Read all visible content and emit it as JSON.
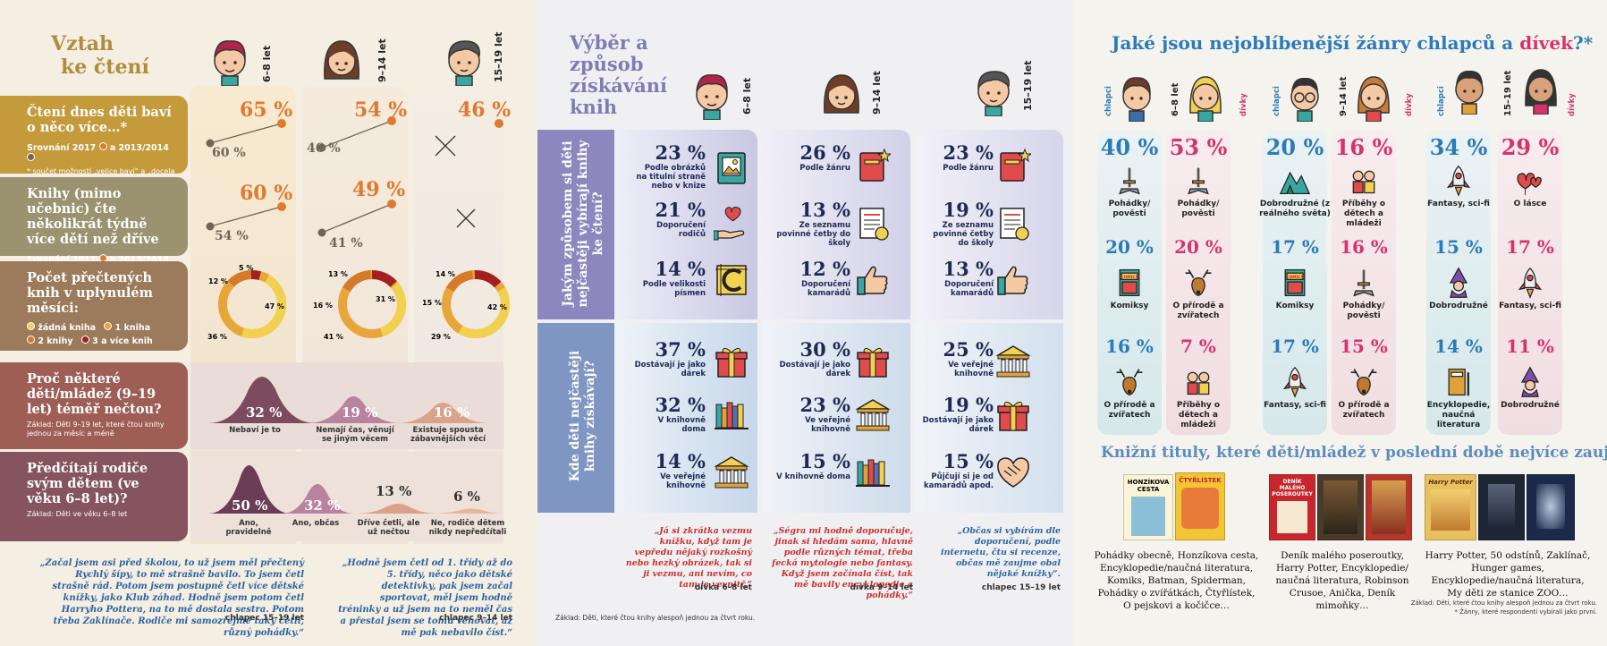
{
  "p1": {
    "title1": "Vztah",
    "title2": "ke čtení",
    "ages": [
      "6–8 let",
      "9–14 let",
      "15–19 let"
    ],
    "b1": {
      "title": "Čtení dnes děti baví o něco více…*",
      "cmp_prefix": "Srovnání 2017",
      "cmp_mid": "a 2013/2014",
      "note": "* součet možností „velice baví“ a „docela baví“",
      "v": [
        "65 %",
        "54 %",
        "46 %"
      ],
      "o": [
        "60 %",
        "46 %"
      ]
    },
    "b2": {
      "title": "Knihy (mimo učebnic) čte několikrát týdně více dětí než dříve",
      "cmp_prefix": "Srovnání 2017",
      "cmp_mid": "a 2013/2014",
      "v": [
        "60 %",
        "49 %"
      ],
      "o": [
        "54 %",
        "41 %"
      ]
    },
    "b3": {
      "title": "Počet přečtených knih v uplynulém měsíci:",
      "legend": [
        "žádná kniha",
        "1 kniha",
        "2 knihy",
        "3 a více knih"
      ],
      "donuts": [
        {
          "vals": [
            "5 %",
            "12 %",
            "47 %",
            "36 %"
          ]
        },
        {
          "vals": [
            "13 %",
            "16 %",
            "31 %",
            "41 %"
          ]
        },
        {
          "vals": [
            "14 %",
            "15 %",
            "42 %",
            "29 %"
          ]
        }
      ]
    },
    "b4": {
      "title": "Proč některé děti/mládež (9–19 let) téměř nečtou?",
      "note": "Základ: Děti 9–19 let, které čtou knihy jednou za měsíc a méně",
      "items": [
        {
          "v": "32 %",
          "l": "Nebaví je to"
        },
        {
          "v": "19 %",
          "l": "Nemají čas, věnují se jiným věcem"
        },
        {
          "v": "16 %",
          "l": "Existuje spousta zábavnějších věcí"
        }
      ]
    },
    "b5": {
      "title": "Předčítají rodiče svým dětem (ve věku 6–8 let)?",
      "note": "Základ: Děti ve věku 6–8 let",
      "items": [
        {
          "v": "50 %",
          "l": "Ano, pravidelně"
        },
        {
          "v": "32 %",
          "l": "Ano, občas"
        },
        {
          "v": "13 %",
          "l": "Dříve četli, ale už nečtou"
        },
        {
          "v": "6 %",
          "l": "Ne, rodiče dětem nikdy nepředčítali"
        }
      ]
    },
    "q1": {
      "text": "„Začal jsem asi před školou, to už jsem měl přečtený Rychlý šípy, to mě strašně bavilo. To jsem četl strašně rád. Potom jsem postupně četl více dětské knížky, jako Klub záhad. Hodně jsem potom četl Harryho Pottera, na to mě dostala sestra. Potom třeba Zaklínače. Rodiče mi samozřejmě taky četli, různý pohádky.“",
      "author": "chlapec 15–19 let"
    },
    "q2": {
      "text": "„Hodně jsem četl od 1. třídy až do 5. třídy, něco jako dětské detektivky, pak jsem začal sportovat, měl jsem hodně tréninky a už jsem na to neměl čas a přestal jsem se tomu věnovat, až mě pak nebavilo číst.“",
      "author": "chlapec 9–14 let"
    }
  },
  "p2": {
    "title": "Výběr a způsob získávání knih",
    "ages": [
      "6–8 let",
      "9–14 let",
      "15–19 let"
    ],
    "s1": "Jakým způsobem si děti nejčastěji vybírají knihy ke čtení?",
    "s2": "Kde děti nejčastěji knihy získávají?",
    "c1": [
      {
        "v": "23 %",
        "l": "Podle obrázků na titulní straně nebo v knize"
      },
      {
        "v": "21 %",
        "l": "Doporučení rodičů"
      },
      {
        "v": "14 %",
        "l": "Podle velikosti písmen"
      },
      {
        "v": "37 %",
        "l": "Dostávají je jako dárek"
      },
      {
        "v": "32 %",
        "l": "V knihovně doma"
      },
      {
        "v": "14 %",
        "l": "Ve veřejné knihovně"
      }
    ],
    "c2": [
      {
        "v": "26 %",
        "l": "Podle žánru"
      },
      {
        "v": "13 %",
        "l": "Ze seznamu povinné četby do školy"
      },
      {
        "v": "12 %",
        "l": "Doporučení kamarádů"
      },
      {
        "v": "30 %",
        "l": "Dostávají je jako dárek"
      },
      {
        "v": "23 %",
        "l": "Ve veřejné knihovně"
      },
      {
        "v": "15 %",
        "l": "V knihovně doma"
      }
    ],
    "c3": [
      {
        "v": "23 %",
        "l": "Podle žánru"
      },
      {
        "v": "19 %",
        "l": "Ze seznamu povinné četby do školy"
      },
      {
        "v": "13 %",
        "l": "Doporučení kamarádů"
      },
      {
        "v": "25 %",
        "l": "Ve veřejné knihovně"
      },
      {
        "v": "19 %",
        "l": "Dostávají je jako dárek"
      },
      {
        "v": "15 %",
        "l": "Půjčují si je od kamarádů apod."
      }
    ],
    "q1": {
      "text": "„Já si zkrátka vezmu knížku, když tam je vepředu nějaký rozkošný nebo hezký obrázek, tak si ji vezmu, ani nevím, co tam je vevnitř.“",
      "author": "dívka 6–8 let"
    },
    "q2": {
      "text": "„Ségra mi hodně doporučuje, jinak si hledám sama, hlavně podle různých témat, třeba fecká mytologie nebo fantasy. Když jsem začínala číst, tak mě bavily encyklopedie a pohádky.“",
      "author": "dívka 9–14 let"
    },
    "q3": {
      "text": "„Občas si vybírám dle doporučení, podle internetu, čtu si recenze, občas mě zaujme obal nějaké knížky“.",
      "author": "chlapec 15–19 let"
    },
    "base": "Základ: Děti, které čtou knihy alespoň jednou za čtvrt roku."
  },
  "p3": {
    "title_a": "Jaké jsou nejoblíbenější žánry chlapců a ",
    "title_b": "dívek",
    "title_c": "?*",
    "ages": [
      "6–8 let",
      "9–14 let",
      "15–19 let"
    ],
    "boys": "chlapci",
    "girls": "dívky",
    "cols": [
      [
        {
          "v": "40 %",
          "l": "Pohádky/ pověsti"
        },
        {
          "v": "20 %",
          "l": "Komiksy"
        },
        {
          "v": "16 %",
          "l": "O přírodě a zvířatech"
        }
      ],
      [
        {
          "v": "53 %",
          "l": "Pohádky/ pověsti"
        },
        {
          "v": "20 %",
          "l": "O přírodě a zvířatech"
        },
        {
          "v": "7 %",
          "l": "Příběhy o dětech a mládeži"
        }
      ],
      [
        {
          "v": "20 %",
          "l": "Dobrodružné (z reálného světa)"
        },
        {
          "v": "17 %",
          "l": "Komiksy"
        },
        {
          "v": "17 %",
          "l": "Fantasy, sci-fi"
        }
      ],
      [
        {
          "v": "16 %",
          "l": "Příběhy o dětech a mládeži"
        },
        {
          "v": "16 %",
          "l": "Pohádky/ pověsti"
        },
        {
          "v": "15 %",
          "l": "O přírodě a zvířatech"
        }
      ],
      [
        {
          "v": "34 %",
          "l": "Fantasy, sci-fi"
        },
        {
          "v": "15 %",
          "l": "Dobrodružné"
        },
        {
          "v": "14 %",
          "l": "Encyklopedie, naučná literatura"
        }
      ],
      [
        {
          "v": "29 %",
          "l": "O lásce"
        },
        {
          "v": "17 %",
          "l": "Fantasy, sci-fi"
        },
        {
          "v": "11 %",
          "l": "Dobrodružné"
        }
      ]
    ],
    "comics": "COMICS",
    "books_title": "Knižní tituly, které děti/mládež v poslední době nejvíce zaujaly",
    "covers": [
      "HONZÍKOVA CESTA",
      "ČTYŘLÍSTEK",
      "DENÍK MALÉHO POSEROUTKY",
      "Harry Potter"
    ],
    "books": [
      "Pohádky obecně, Honzíkova cesta, Encyklopedie/naučná literatura, Komiks, Batman, Spiderman, Pohádky o zvířátkách, Čtyřlístek, O pejskovi a kočičce…",
      "Deník malého poseroutky, Harry Potter, Encyklopedie/ naučná literatura, Robinson Crusoe, Anička, Deník mimoňky…",
      "Harry Potter, 50 odstínů, Zaklínač, Hunger games, Encyklopedie/naučná literatura, My děti ze stanice ZOO…"
    ],
    "base": "Základ: Děti, které čtou knihy alespoň jednou za čtvrt roku.",
    "note": "* Žánry, které respondenti vybírali jako první."
  },
  "colors": {
    "gold": "#b08d3c",
    "orange": "#e07a2f",
    "navy": "#1e2a55",
    "blue": "#2b7bb9",
    "pink": "#d6336c",
    "purple": "#7d7db5"
  }
}
